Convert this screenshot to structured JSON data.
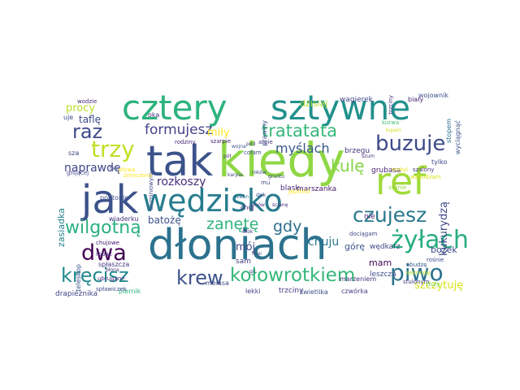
{
  "words": [
    {
      "text": "kiedy",
      "color": "#8fd744"
    },
    {
      "text": "dłoniach",
      "color": "#2c728e"
    },
    {
      "text": "tak",
      "color": "#3b528b"
    },
    {
      "text": "cztery",
      "color": "#2db27d"
    },
    {
      "text": "sztywne",
      "color": "#21918c"
    },
    {
      "text": "jak",
      "color": "#3b528b"
    },
    {
      "text": "wędzisko",
      "color": "#287c8e"
    },
    {
      "text": "ref",
      "color": "#a0da39"
    },
    {
      "text": "buzuje",
      "color": "#3e4a89"
    },
    {
      "text": "czujesz",
      "color": "#2a788e"
    },
    {
      "text": "żyłach",
      "color": "#27ad81"
    },
    {
      "text": "piwo",
      "color": "#2c728e"
    },
    {
      "text": "kołowrotkiem",
      "color": "#35b779"
    },
    {
      "text": "kręcisz",
      "color": "#238a8d"
    },
    {
      "text": "krew",
      "color": "#3b528b"
    },
    {
      "text": "trzy",
      "color": "#c2df23"
    },
    {
      "text": "raz",
      "color": "#3e4a89"
    },
    {
      "text": "formujesz",
      "color": "#414487"
    },
    {
      "text": "tratatata",
      "color": "#35b779"
    },
    {
      "text": "myślach",
      "color": "#38588c"
    },
    {
      "text": "zanętę",
      "color": "#2fb47c"
    },
    {
      "text": "gdy",
      "color": "#2e6e8e"
    },
    {
      "text": "kulę",
      "color": "#86d549"
    },
    {
      "text": "dwa",
      "color": "#440154"
    },
    {
      "text": "wilgotną",
      "color": "#2ab07f"
    },
    {
      "text": "naprawdę",
      "color": "#404387"
    },
    {
      "text": "rozkoszy",
      "color": "#472d7b"
    },
    {
      "text": "kukurydzą",
      "color": "#3e4989"
    },
    {
      "text": "chuju",
      "color": "#2a788e"
    },
    {
      "text": "batożę",
      "color": "#3b528b"
    },
    {
      "text": "mój",
      "color": "#404688"
    },
    {
      "text": "miły",
      "color": "#fde725"
    },
    {
      "text": "procy",
      "color": "#b8de29"
    },
    {
      "text": "taflę",
      "color": "#3f4889"
    },
    {
      "text": "szczytuję",
      "color": "#d8e219"
    },
    {
      "text": "zasiadka",
      "color": "#277f8e"
    },
    {
      "text": "dzisiaj",
      "color": "#b5de2b"
    },
    {
      "text": "wagierek",
      "color": "#404688"
    },
    {
      "text": "biały",
      "color": "#482878"
    },
    {
      "text": "górę",
      "color": "#3b528b"
    },
    {
      "text": "mam",
      "color": "#440154"
    },
    {
      "text": "bożek",
      "color": "#3e4a89"
    },
    {
      "text": "leszcza",
      "color": "#3b528b"
    },
    {
      "text": "wędkarz",
      "color": "#414487"
    },
    {
      "text": "sam",
      "color": "#443983"
    },
    {
      "text": "brzegu",
      "color": "#46327e"
    },
    {
      "text": "grubasa",
      "color": "#482475"
    },
    {
      "text": "marszanka",
      "color": "#481a6c"
    },
    {
      "text": "nie",
      "color": "#482173"
    },
    {
      "text": "marzeniem",
      "color": "#46337f"
    },
    {
      "text": "meiasa",
      "color": "#3f4788"
    },
    {
      "text": "blask",
      "color": "#472c7a"
    },
    {
      "text": "trzciny",
      "color": "#453882"
    },
    {
      "text": "świetlika",
      "color": "#3c4f8a"
    },
    {
      "text": "czwórka",
      "color": "#433e85"
    },
    {
      "text": "lekki",
      "color": "#404588"
    },
    {
      "text": "wiaderku",
      "color": "#46317e"
    },
    {
      "text": "pontonie",
      "color": "#3e4c8a"
    },
    {
      "text": "drapieżnika",
      "color": "#414487"
    },
    {
      "text": "piernik",
      "color": "#2fb47c"
    },
    {
      "text": "spłaszcza",
      "color": "#453781"
    },
    {
      "text": "teleskop",
      "color": "#3a548c"
    },
    {
      "text": "spławiczek",
      "color": "#3e4a89"
    },
    {
      "text": "rodziny",
      "color": "#482576"
    },
    {
      "text": "uje",
      "color": "#3d4d8a"
    },
    {
      "text": "sza",
      "color": "#404387"
    },
    {
      "text": "wodzie",
      "color": "#472f7d"
    },
    {
      "text": "oka",
      "color": "#46307e"
    },
    {
      "text": "prawiny",
      "color": "#3c4f8a"
    },
    {
      "text": "trzciny",
      "color": "#453581"
    },
    {
      "text": "wojownik",
      "color": "#3c508b"
    },
    {
      "text": "stopem",
      "color": "#2c728e"
    },
    {
      "text": "wyciągnąć",
      "color": "#3b528b"
    },
    {
      "text": "tylko",
      "color": "#3e4a89"
    },
    {
      "text": "aluminiowym",
      "color": "#404588"
    },
    {
      "text": "szalony",
      "color": "#46337f"
    },
    {
      "text": "chujowe",
      "color": "#482071"
    },
    {
      "text": "dociągam",
      "color": "#3e4989"
    },
    {
      "text": "obudzę",
      "color": "#375b8d"
    },
    {
      "text": "rośnie",
      "color": "#3e4c8a"
    },
    {
      "text": "ubrugane",
      "color": "#472e7c"
    },
    {
      "text": "stulonym",
      "color": "#433d84"
    },
    {
      "text": "gnijącej",
      "color": "#404588"
    },
    {
      "text": "szarpie",
      "color": "#482576"
    },
    {
      "text": "arpie",
      "color": "#453781"
    },
    {
      "text": "mu",
      "color": "#3e4c8a"
    },
    {
      "text": "jezioro",
      "color": "#fde725"
    },
    {
      "text": "motyl",
      "color": "#e5e419"
    },
    {
      "text": "zmoczona",
      "color": "#fde725"
    },
    {
      "text": "wzbudzam",
      "color": "#dde318"
    },
    {
      "text": "sekundę",
      "color": "#b5de2b"
    },
    {
      "text": "duży",
      "color": "#73d056"
    },
    {
      "text": "kurwa",
      "color": "#42be71"
    },
    {
      "text": "łupam",
      "color": "#d0e11c"
    },
    {
      "text": "cofam",
      "color": "#3a548c"
    },
    {
      "text": "pod",
      "color": "#443a83"
    },
    {
      "text": "roków",
      "color": "#414487"
    },
    {
      "text": "gruntu",
      "color": "#404588"
    },
    {
      "text": "dzik",
      "color": "#3e4989"
    },
    {
      "text": "ścianę",
      "color": "#472d7b"
    },
    {
      "text": "ocean",
      "color": "#2f6c8e"
    },
    {
      "text": "kmów",
      "color": "#453882"
    },
    {
      "text": "karpia",
      "color": "#3e4a89"
    },
    {
      "text": "robak",
      "color": "#472a7a"
    },
    {
      "text": "błona",
      "color": "#46317e"
    },
    {
      "text": "łowi",
      "color": "#3f4889"
    },
    {
      "text": "gil",
      "color": "#424186"
    },
    {
      "text": "skok",
      "color": "#433e85"
    },
    {
      "text": "chuj",
      "color": "#481f70"
    },
    {
      "text": "wojna",
      "color": "#3b528b"
    },
    {
      "text": "pół",
      "color": "#46327e"
    },
    {
      "text": "fala",
      "color": "#3e4989"
    },
    {
      "text": "szum",
      "color": "#472f7d"
    },
    {
      "text": "pływa",
      "color": "#fde725"
    },
    {
      "text": "ssanie",
      "color": "#95d840"
    }
  ]
}
